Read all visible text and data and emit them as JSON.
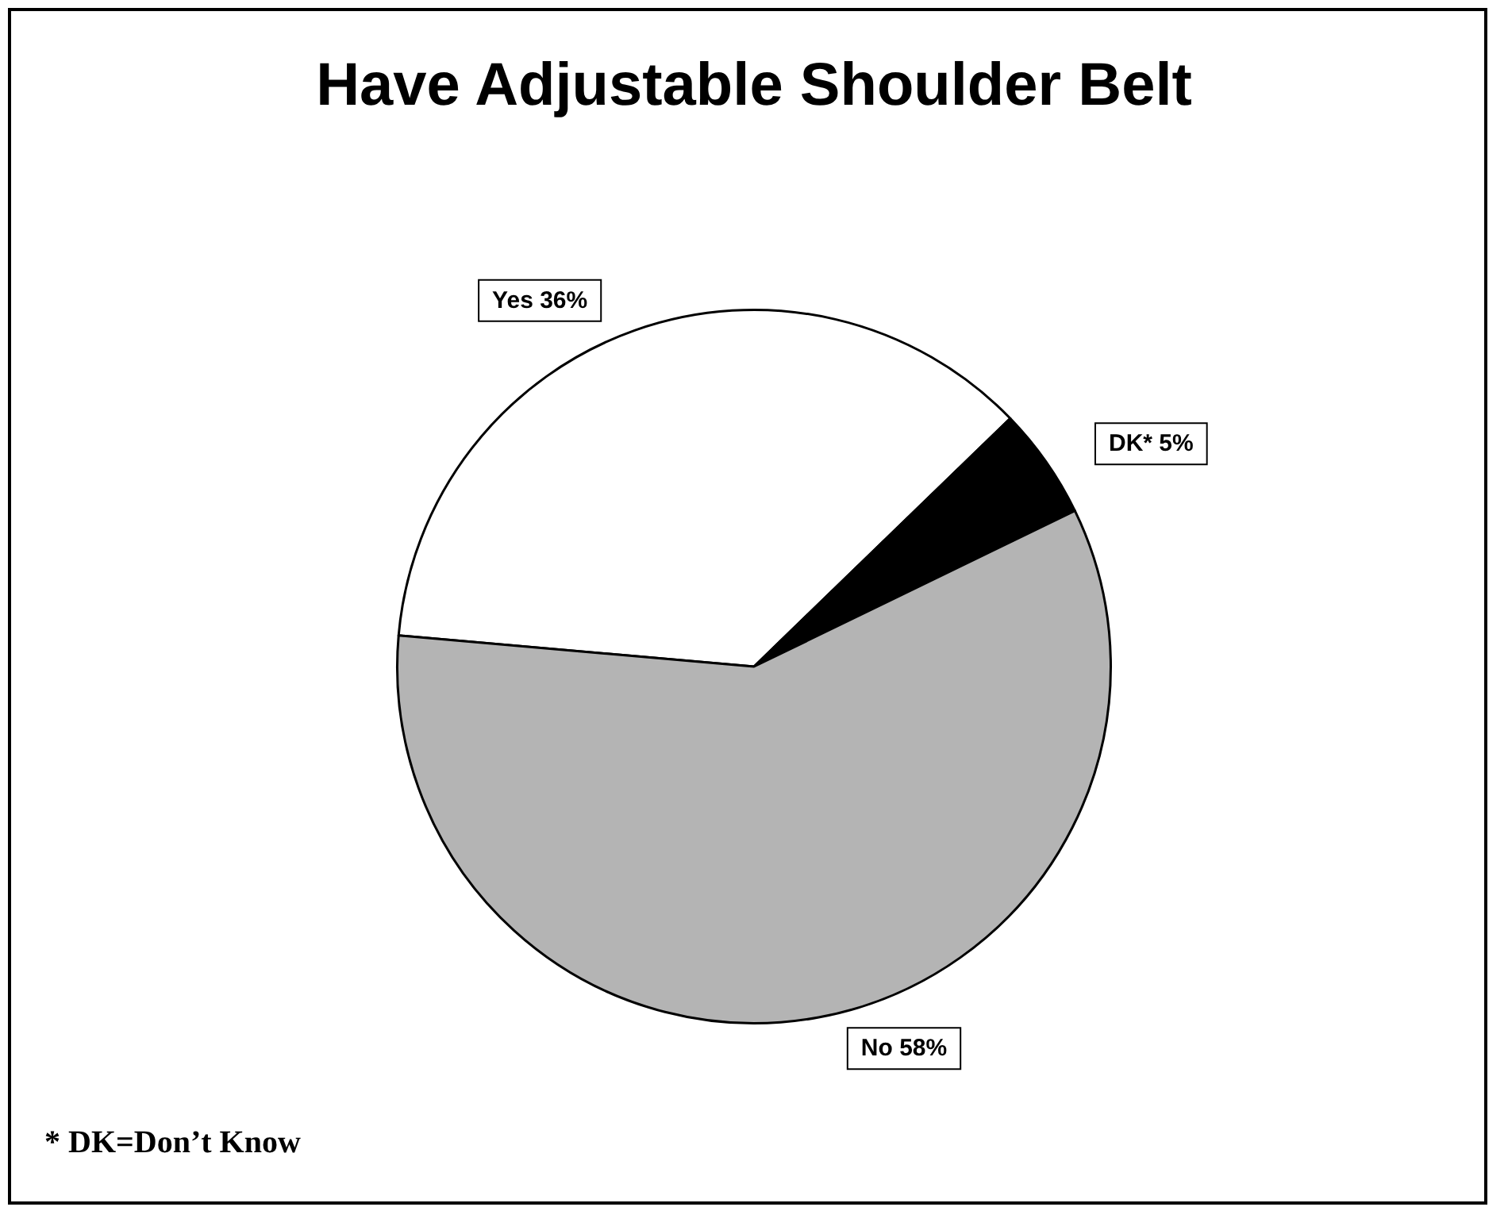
{
  "chart_data": {
    "type": "pie",
    "title": "Have Adjustable Shoulder Belt",
    "categories": [
      "Yes",
      "DK*",
      "No"
    ],
    "values": [
      36,
      5,
      58
    ],
    "colors": [
      "#ffffff",
      "#000000",
      "#b4b4b4"
    ],
    "value_labels": [
      "36%",
      "5%",
      "58%"
    ],
    "annotations": [
      "* DK=Don’t Know"
    ]
  }
}
